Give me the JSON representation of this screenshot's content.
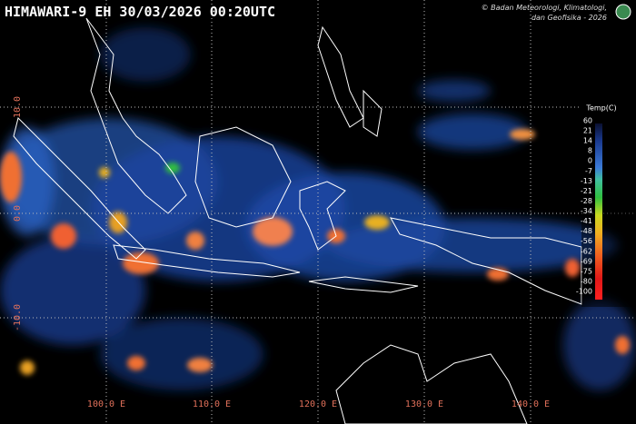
{
  "header": {
    "title": "HIMAWARI-9 EH 30/03/2026 00:20UTC",
    "credit": [
      "© Badan Meteorologi, Klimatologi,",
      "dan Geofisika - 2026"
    ]
  },
  "legend": {
    "title": "Temp(C)",
    "labels": [
      60,
      21,
      14,
      8,
      0,
      -7,
      -13,
      -21,
      -28,
      -34,
      -41,
      -48,
      -56,
      -62,
      -69,
      -75,
      -80,
      -100
    ]
  },
  "longitude_labels": [
    "100.0 E",
    "110.0 E",
    "120.0 E",
    "130.0 E",
    "140.0 E"
  ],
  "latitude_labels": [
    "10.0",
    "0.0",
    "-10.0"
  ]
}
